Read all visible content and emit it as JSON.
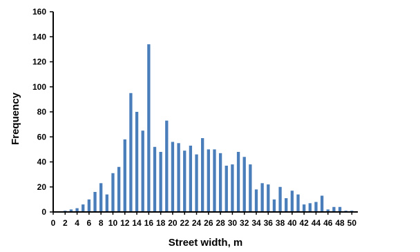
{
  "chart_data": {
    "type": "bar",
    "xlabel": "Street width, m",
    "ylabel": "Frequency",
    "xlim": [
      0,
      51
    ],
    "ylim": [
      0,
      160
    ],
    "y_ticks": [
      0,
      20,
      40,
      60,
      80,
      100,
      120,
      140,
      160
    ],
    "x_ticks": [
      0,
      2,
      4,
      6,
      8,
      10,
      12,
      14,
      16,
      18,
      20,
      22,
      24,
      26,
      28,
      30,
      32,
      34,
      36,
      38,
      40,
      42,
      44,
      46,
      48,
      50
    ],
    "grid": false,
    "bar_color": "#4a7ebb",
    "x": [
      1,
      2,
      3,
      4,
      5,
      6,
      7,
      8,
      9,
      10,
      11,
      12,
      13,
      14,
      15,
      16,
      17,
      18,
      19,
      20,
      21,
      22,
      23,
      24,
      25,
      26,
      27,
      28,
      29,
      30,
      31,
      32,
      33,
      34,
      35,
      36,
      37,
      38,
      39,
      40,
      41,
      42,
      43,
      44,
      45,
      46,
      47,
      48,
      49,
      50
    ],
    "values": [
      0,
      1,
      2,
      3,
      6,
      10,
      16,
      23,
      14,
      31,
      36,
      58,
      95,
      80,
      65,
      134,
      52,
      48,
      73,
      56,
      55,
      49,
      53,
      46,
      59,
      50,
      50,
      47,
      37,
      38,
      48,
      44,
      38,
      18,
      23,
      22,
      10,
      20,
      11,
      17,
      14,
      6,
      7,
      8,
      13,
      2,
      4,
      4,
      1,
      1
    ]
  }
}
